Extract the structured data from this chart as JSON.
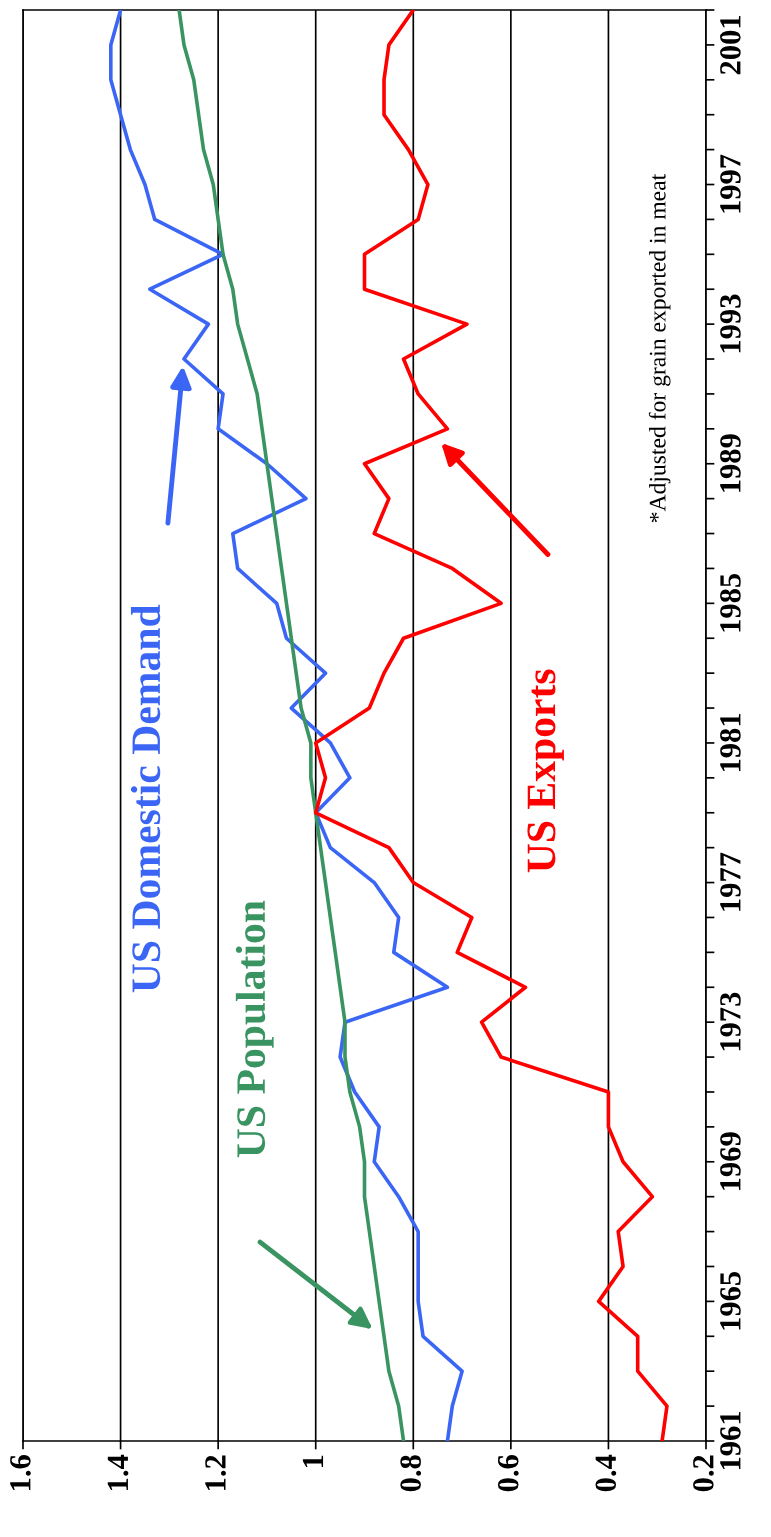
{
  "chart_data": {
    "type": "line",
    "series": [
      {
        "name": "US Domestic Demand",
        "color": "#3b66f5",
        "x": [
          0.73,
          0.72,
          0.7,
          0.78,
          0.79,
          0.79,
          0.79,
          0.83,
          0.88,
          0.87,
          0.92,
          0.95,
          0.94,
          0.73,
          0.84,
          0.83,
          0.88,
          0.97,
          1.0,
          0.93,
          0.97,
          1.05,
          0.98,
          1.06,
          1.08,
          1.16,
          1.17,
          1.02,
          1.1,
          1.2,
          1.19,
          1.27,
          1.22,
          1.34,
          1.19,
          1.33,
          1.35,
          1.38,
          1.4,
          1.42,
          1.42,
          1.4
        ],
        "values": [
          1961,
          1962,
          1963,
          1964,
          1965,
          1966,
          1967,
          1968,
          1969,
          1970,
          1971,
          1972,
          1973,
          1974,
          1975,
          1976,
          1977,
          1978,
          1979,
          1980,
          1981,
          1982,
          1983,
          1984,
          1985,
          1986,
          1987,
          1988,
          1989,
          1990,
          1991,
          1992,
          1993,
          1994,
          1995,
          1996,
          1997,
          1998,
          1999,
          2000,
          2001,
          2002
        ]
      },
      {
        "name": "US Population",
        "color": "#3a9462",
        "x": [
          0.82,
          0.83,
          0.85,
          0.86,
          0.87,
          0.88,
          0.89,
          0.9,
          0.9,
          0.91,
          0.93,
          0.94,
          0.94,
          0.95,
          0.96,
          0.97,
          0.98,
          0.99,
          1.0,
          1.01,
          1.01,
          1.03,
          1.04,
          1.05,
          1.06,
          1.07,
          1.08,
          1.09,
          1.1,
          1.11,
          1.12,
          1.14,
          1.16,
          1.17,
          1.19,
          1.2,
          1.21,
          1.23,
          1.24,
          1.25,
          1.27,
          1.28
        ],
        "values": [
          1961,
          1962,
          1963,
          1964,
          1965,
          1966,
          1967,
          1968,
          1969,
          1970,
          1971,
          1972,
          1973,
          1974,
          1975,
          1976,
          1977,
          1978,
          1979,
          1980,
          1981,
          1982,
          1983,
          1984,
          1985,
          1986,
          1987,
          1988,
          1989,
          1990,
          1991,
          1992,
          1993,
          1994,
          1995,
          1996,
          1997,
          1998,
          1999,
          2000,
          2001,
          2002
        ]
      },
      {
        "name": "US Exports",
        "color": "#ff0000",
        "x": [
          0.29,
          0.28,
          0.34,
          0.34,
          0.42,
          0.37,
          0.38,
          0.31,
          0.37,
          0.4,
          0.4,
          0.62,
          0.66,
          0.57,
          0.71,
          0.68,
          0.8,
          0.85,
          1.0,
          0.98,
          1.0,
          0.89,
          0.86,
          0.82,
          0.62,
          0.72,
          0.88,
          0.85,
          0.9,
          0.73,
          0.79,
          0.82,
          0.69,
          0.9,
          0.9,
          0.79,
          0.77,
          0.81,
          0.86,
          0.86,
          0.85,
          0.8
        ],
        "values": [
          1961,
          1962,
          1963,
          1964,
          1965,
          1966,
          1967,
          1968,
          1969,
          1970,
          1971,
          1972,
          1973,
          1974,
          1975,
          1976,
          1977,
          1978,
          1979,
          1980,
          1981,
          1982,
          1983,
          1984,
          1985,
          1986,
          1987,
          1988,
          1989,
          1990,
          1991,
          1992,
          1993,
          1994,
          1995,
          1996,
          1997,
          1998,
          1999,
          2000,
          2001,
          2002
        ]
      }
    ],
    "xlim": [
      1.6,
      0.2
    ],
    "xticks": [
      1.6,
      1.4,
      1.2,
      1,
      0.8,
      0.6,
      0.4,
      0.2
    ],
    "ylim": [
      1961,
      2002
    ],
    "yticks": [
      1961,
      {
        "value": 1962,
        "label": null
      },
      {
        "value": 1963,
        "label": null
      },
      {
        "value": 1964,
        "label": null
      },
      1965,
      {
        "value": 1966,
        "label": null
      },
      {
        "value": 1967,
        "label": null
      },
      {
        "value": 1968,
        "label": null
      },
      1969,
      {
        "value": 1970,
        "label": null
      },
      {
        "value": 1971,
        "label": null
      },
      {
        "value": 1972,
        "label": null
      },
      1973,
      {
        "value": 1974,
        "label": null
      },
      {
        "value": 1975,
        "label": null
      },
      {
        "value": 1976,
        "label": null
      },
      1977,
      {
        "value": 1978,
        "label": null
      },
      {
        "value": 1979,
        "label": null
      },
      {
        "value": 1980,
        "label": null
      },
      1981,
      {
        "value": 1982,
        "label": null
      },
      {
        "value": 1983,
        "label": null
      },
      {
        "value": 1984,
        "label": null
      },
      1985,
      {
        "value": 1986,
        "label": null
      },
      {
        "value": 1987,
        "label": null
      },
      {
        "value": 1988,
        "label": null
      },
      1989,
      {
        "value": 1990,
        "label": null
      },
      {
        "value": 1991,
        "label": null
      },
      {
        "value": 1992,
        "label": null
      },
      1993,
      {
        "value": 1994,
        "label": null
      },
      {
        "value": 1995,
        "label": null
      },
      {
        "value": 1996,
        "label": null
      },
      1997,
      {
        "value": 1998,
        "label": null
      },
      {
        "value": 1999,
        "label": null
      },
      {
        "value": 2000,
        "label": null
      },
      2001,
      {
        "value": 2002,
        "label": null
      }
    ],
    "grid": "x",
    "legend": false,
    "marker": "none",
    "line_style": "solid",
    "annotations": [
      "*Adjusted for grain exported in meat"
    ]
  }
}
